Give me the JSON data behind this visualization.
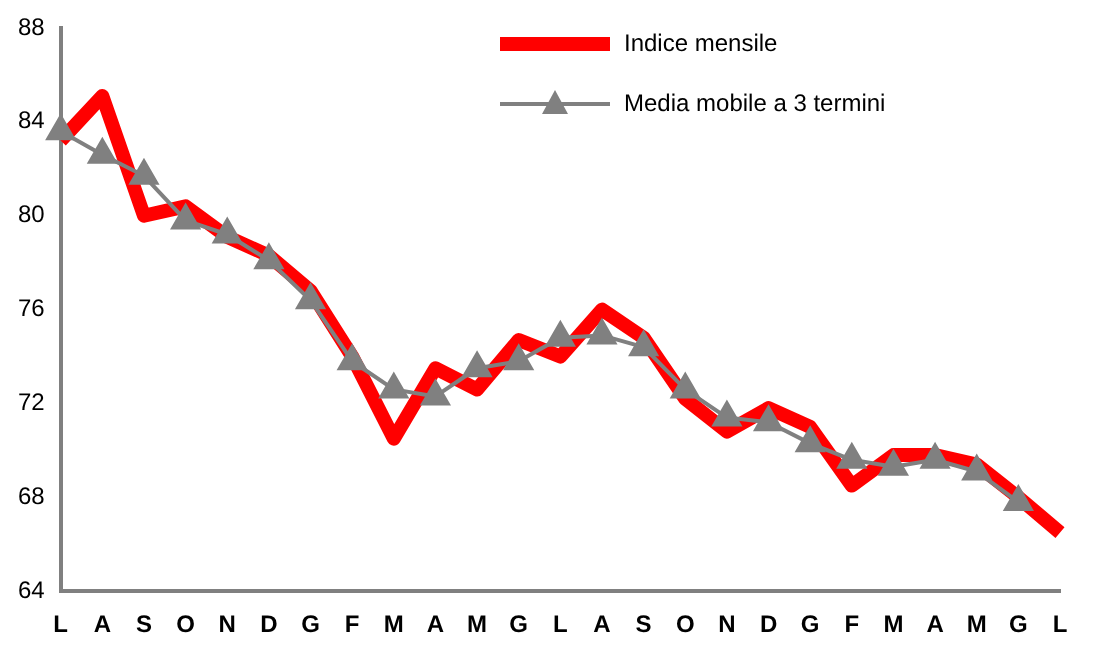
{
  "chart_data": {
    "type": "line",
    "categories": [
      "L",
      "A",
      "S",
      "O",
      "N",
      "D",
      "G",
      "F",
      "M",
      "A",
      "M",
      "G",
      "L",
      "A",
      "S",
      "O",
      "N",
      "D",
      "G",
      "F",
      "M",
      "A",
      "M",
      "G",
      "L"
    ],
    "series": [
      {
        "name": "Indice mensile",
        "color": "#ff0000",
        "marker": "none",
        "values": [
          83.2,
          85.1,
          80.0,
          80.4,
          79.1,
          78.3,
          76.8,
          74.0,
          70.5,
          73.5,
          72.6,
          74.7,
          74.0,
          76.0,
          74.8,
          72.2,
          70.8,
          71.8,
          71.0,
          68.5,
          69.8,
          69.8,
          69.4,
          68.0,
          66.5
        ]
      },
      {
        "name": "Media mobile a 3 termini",
        "color": "#808080",
        "marker": "triangle",
        "values": [
          83.6,
          82.6,
          81.7,
          79.8,
          79.2,
          78.1,
          76.4,
          73.8,
          72.6,
          72.3,
          73.5,
          73.8,
          74.8,
          74.9,
          74.4,
          72.6,
          71.4,
          71.2,
          70.3,
          69.6,
          69.3,
          69.6,
          69.1,
          67.8,
          null
        ]
      }
    ],
    "ylim": [
      64,
      88
    ],
    "yticks": [
      64,
      68,
      72,
      76,
      80,
      84,
      88
    ],
    "grid": false,
    "legend": "top right"
  }
}
